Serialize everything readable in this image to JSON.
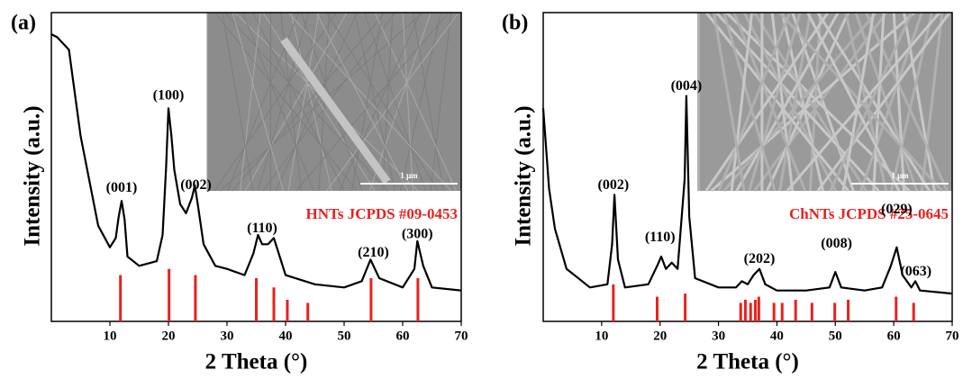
{
  "chart_data": [
    {
      "type": "line",
      "panel_label": "(a)",
      "xlabel": "2 Theta (°)",
      "ylabel": "Intensity (a.u.)",
      "xlim": [
        0,
        70
      ],
      "xticks": [
        10,
        20,
        30,
        40,
        50,
        60,
        70
      ],
      "ylim": [
        0,
        100
      ],
      "series": [
        {
          "color": "#000000",
          "x": [
            0,
            1,
            2,
            3,
            5,
            8,
            10,
            11,
            11.5,
            12,
            12.5,
            13,
            15,
            18,
            19,
            19.6,
            20,
            20.5,
            21,
            22,
            23,
            24,
            24.5,
            25,
            26,
            28,
            30,
            33,
            34.5,
            35.3,
            36,
            37,
            38,
            39,
            40,
            45,
            50,
            53,
            54.5,
            56,
            60,
            62,
            62.5,
            63.5,
            65,
            70
          ],
          "values": [
            93,
            92,
            90,
            88,
            60,
            31,
            24,
            27,
            34,
            39,
            33,
            21,
            18,
            19.5,
            28,
            50,
            69,
            60,
            49,
            38,
            35,
            40,
            44,
            38,
            25,
            18,
            17,
            15,
            22,
            28,
            25,
            25,
            27,
            21,
            15,
            12,
            11,
            13,
            20,
            14,
            11,
            17,
            26,
            18,
            11,
            10
          ]
        },
        {
          "name": "HNTs JCPDS #09-0453",
          "style": "stick",
          "color": "#e8211f",
          "x": [
            11.8,
            20.1,
            24.6,
            35.0,
            38.0,
            40.3,
            43.8,
            54.6,
            62.6
          ],
          "values": [
            15,
            17,
            15,
            14,
            11,
            7,
            6,
            14,
            14
          ]
        }
      ],
      "annotations": [
        {
          "text": "(001)",
          "x": 12,
          "y": 43
        },
        {
          "text": "(100)",
          "x": 20,
          "y": 73
        },
        {
          "text": "(002)",
          "x": 24.7,
          "y": 44
        },
        {
          "text": "(110)",
          "x": 36,
          "y": 30
        },
        {
          "text": "(210)",
          "x": 55,
          "y": 22
        },
        {
          "text": "(300)",
          "x": 62.5,
          "y": 28
        }
      ],
      "inset": {
        "scale_label": "1 μm"
      }
    },
    {
      "type": "line",
      "panel_label": "(b)",
      "xlabel": "2 Theta (°)",
      "ylabel": "Intensity (a.u.)",
      "xlim": [
        0,
        70
      ],
      "xticks": [
        10,
        20,
        30,
        40,
        50,
        60,
        70
      ],
      "ylim": [
        0,
        100
      ],
      "series": [
        {
          "color": "#000000",
          "x": [
            0,
            1,
            2,
            4,
            8,
            11,
            11.8,
            12.2,
            12.8,
            14,
            18,
            19.5,
            20.2,
            21,
            22,
            23,
            24.2,
            24.5,
            25,
            26,
            30,
            33,
            34,
            35,
            36,
            37,
            38,
            40,
            45,
            49,
            50,
            51,
            55,
            58,
            59.5,
            60.5,
            61.5,
            63,
            63.7,
            64.5,
            70
          ],
          "values": [
            69,
            43,
            30,
            17,
            11,
            12,
            25,
            41,
            20,
            11,
            12,
            18,
            21,
            17,
            19,
            17,
            46,
            73,
            34,
            14,
            11,
            11,
            13,
            12,
            15,
            17,
            12,
            10,
            10,
            11,
            16,
            11,
            10,
            11,
            18,
            24,
            15,
            11,
            13,
            10,
            9
          ]
        },
        {
          "name": "ChNTs JCPDS #25-0645",
          "style": "stick",
          "color": "#e8211f",
          "x": [
            12.0,
            19.5,
            24.3,
            33.8,
            34.6,
            35.5,
            36.3,
            36.9,
            39.5,
            40.9,
            43.2,
            46.0,
            49.9,
            52.2,
            60.4,
            63.4
          ],
          "values": [
            12,
            8,
            9,
            6,
            7,
            6,
            7,
            8,
            6,
            6,
            7,
            6,
            6,
            7,
            8,
            6
          ]
        }
      ],
      "annotations": [
        {
          "text": "(002)",
          "x": 12,
          "y": 44
        },
        {
          "text": "(110)",
          "x": 20,
          "y": 27
        },
        {
          "text": "(004)",
          "x": 24.5,
          "y": 76
        },
        {
          "text": "(202)",
          "x": 37,
          "y": 20
        },
        {
          "text": "(008)",
          "x": 50.2,
          "y": 25
        },
        {
          "text": "(029)",
          "x": 60.5,
          "y": 36
        },
        {
          "text": "(063)",
          "x": 63.8,
          "y": 16
        }
      ],
      "inset": {
        "scale_label": "1 μm"
      }
    }
  ]
}
